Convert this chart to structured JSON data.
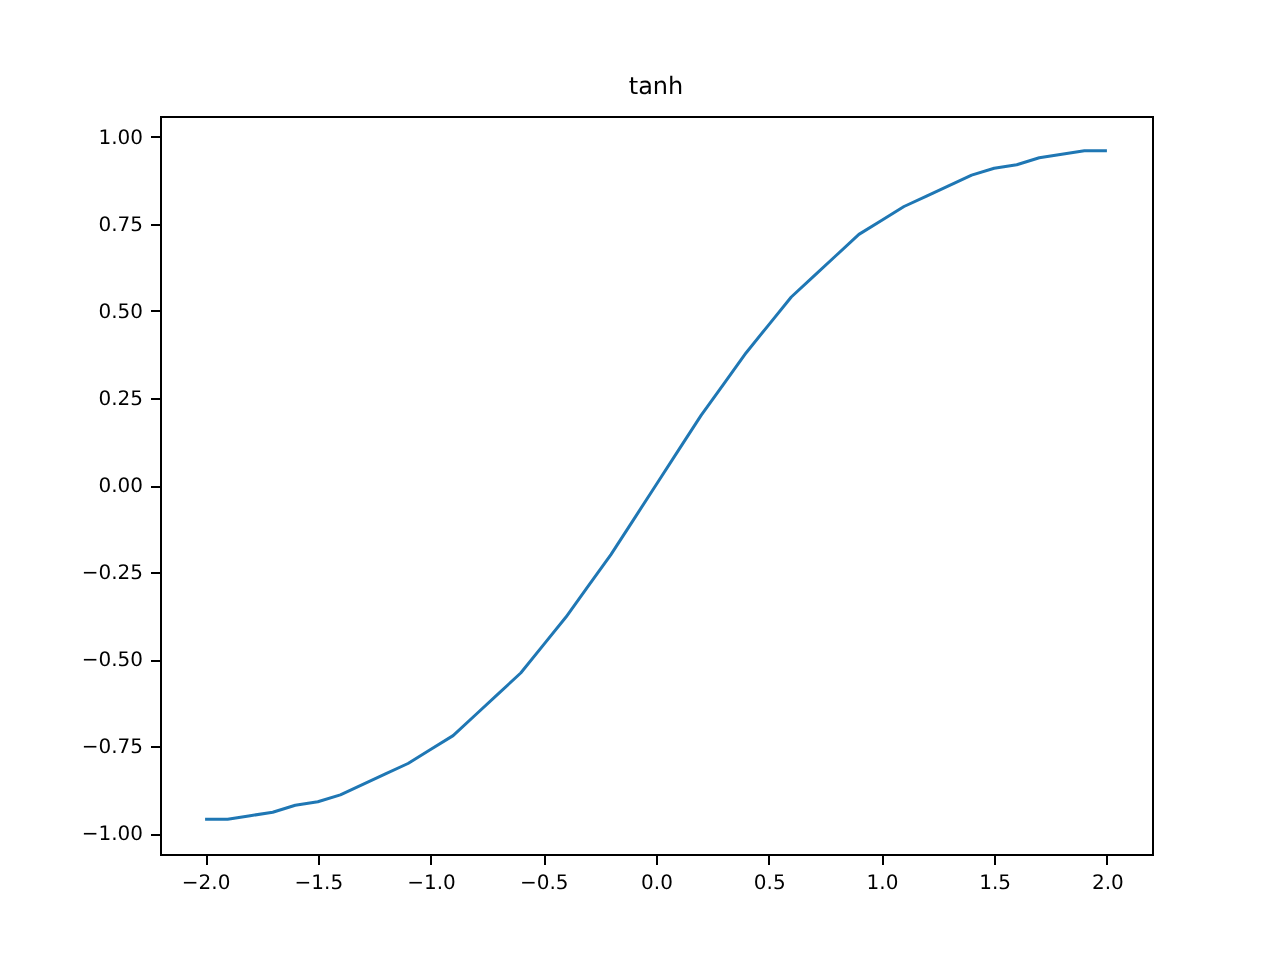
{
  "chart_data": {
    "type": "line",
    "title": "tanh",
    "x": [
      -2.0,
      -1.9,
      -1.8,
      -1.7,
      -1.6,
      -1.5,
      -1.4,
      -1.3,
      -1.2,
      -1.1,
      -1.0,
      -0.9,
      -0.8,
      -0.7,
      -0.6,
      -0.5,
      -0.4,
      -0.3,
      -0.2,
      -0.1,
      0.0,
      0.1,
      0.2,
      0.3,
      0.4,
      0.5,
      0.6,
      0.7,
      0.8,
      0.9,
      1.0,
      1.1,
      1.2,
      1.3,
      1.4,
      1.5,
      1.6,
      1.7,
      1.8,
      1.9,
      2.0
    ],
    "series": [
      {
        "color": "#1f77b4",
        "values": [
          -0.96,
          -0.96,
          -0.95,
          -0.94,
          -0.92,
          -0.91,
          -0.89,
          -0.86,
          -0.83,
          -0.8,
          -0.76,
          -0.72,
          -0.66,
          -0.6,
          -0.54,
          -0.46,
          -0.38,
          -0.29,
          -0.2,
          -0.1,
          0.0,
          0.1,
          0.2,
          0.29,
          0.38,
          0.46,
          0.54,
          0.6,
          0.66,
          0.72,
          0.76,
          0.8,
          0.83,
          0.86,
          0.89,
          0.91,
          0.92,
          0.94,
          0.95,
          0.96,
          0.96
        ]
      }
    ],
    "xlim": [
      -2.2,
      2.2
    ],
    "ylim": [
      -1.06,
      1.06
    ],
    "xticks": [
      {
        "value": -2.0,
        "label": "−2.0"
      },
      {
        "value": -1.5,
        "label": "−1.5"
      },
      {
        "value": -1.0,
        "label": "−1.0"
      },
      {
        "value": -0.5,
        "label": "−0.5"
      },
      {
        "value": 0.0,
        "label": "0.0"
      },
      {
        "value": 0.5,
        "label": "0.5"
      },
      {
        "value": 1.0,
        "label": "1.0"
      },
      {
        "value": 1.5,
        "label": "1.5"
      },
      {
        "value": 2.0,
        "label": "2.0"
      }
    ],
    "yticks": [
      {
        "value": -1.0,
        "label": "−1.00"
      },
      {
        "value": -0.75,
        "label": "−0.75"
      },
      {
        "value": -0.5,
        "label": "−0.50"
      },
      {
        "value": -0.25,
        "label": "−0.25"
      },
      {
        "value": 0.0,
        "label": "0.00"
      },
      {
        "value": 0.25,
        "label": "0.25"
      },
      {
        "value": 0.5,
        "label": "0.50"
      },
      {
        "value": 0.75,
        "label": "0.75"
      },
      {
        "value": 1.0,
        "label": "1.00"
      }
    ],
    "grid": false,
    "marker": "none",
    "line_style": "solid"
  }
}
